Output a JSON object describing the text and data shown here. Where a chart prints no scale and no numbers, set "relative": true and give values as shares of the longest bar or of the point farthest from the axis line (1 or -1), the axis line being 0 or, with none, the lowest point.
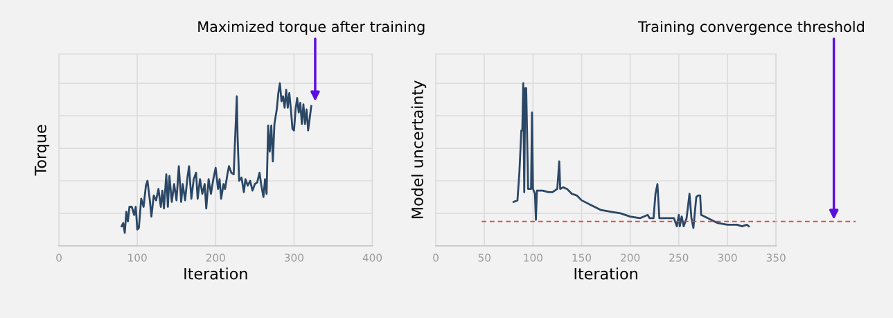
{
  "chart_data": [
    {
      "type": "line",
      "xlabel": "Iteration",
      "ylabel": "Torque",
      "relative": true,
      "grid": true,
      "xlim": [
        0,
        400
      ],
      "xticks": [
        0,
        100,
        200,
        300,
        400
      ],
      "annotations": [
        "Maximized torque after training"
      ],
      "series": [
        {
          "color": "#2b4766",
          "x": [
            80,
            82,
            84,
            86,
            88,
            90,
            93,
            96,
            98,
            100,
            102,
            105,
            108,
            111,
            113,
            116,
            118,
            121,
            124,
            127,
            130,
            132,
            134,
            137,
            139,
            141,
            144,
            147,
            150,
            153,
            156,
            158,
            161,
            164,
            166,
            169,
            172,
            175,
            177,
            180,
            183,
            186,
            188,
            191,
            194,
            197,
            200,
            203,
            205,
            207,
            210,
            212,
            215,
            217,
            220,
            223,
            225,
            227,
            228,
            230,
            233,
            236,
            238,
            241,
            244,
            247,
            250,
            253,
            256,
            258,
            261,
            263,
            265,
            267,
            269,
            271,
            273,
            275,
            278,
            280,
            282,
            284,
            286,
            288,
            290,
            292,
            294,
            296,
            298,
            300,
            302,
            304,
            306,
            308,
            310,
            312,
            314,
            316,
            318,
            322
          ],
          "values": [
            0.12,
            0.14,
            0.08,
            0.21,
            0.15,
            0.24,
            0.24,
            0.19,
            0.24,
            0.1,
            0.11,
            0.29,
            0.24,
            0.37,
            0.4,
            0.28,
            0.18,
            0.31,
            0.28,
            0.35,
            0.24,
            0.34,
            0.23,
            0.44,
            0.24,
            0.43,
            0.27,
            0.38,
            0.28,
            0.49,
            0.27,
            0.38,
            0.28,
            0.42,
            0.49,
            0.29,
            0.41,
            0.45,
            0.29,
            0.41,
            0.32,
            0.38,
            0.23,
            0.41,
            0.32,
            0.41,
            0.48,
            0.35,
            0.41,
            0.29,
            0.38,
            0.35,
            0.44,
            0.49,
            0.45,
            0.44,
            0.68,
            0.92,
            0.67,
            0.4,
            0.42,
            0.33,
            0.41,
            0.37,
            0.4,
            0.34,
            0.38,
            0.39,
            0.45,
            0.38,
            0.3,
            0.41,
            0.32,
            0.74,
            0.58,
            0.74,
            0.52,
            0.75,
            0.84,
            0.94,
            1,
            0.89,
            0.92,
            0.85,
            0.96,
            0.85,
            0.94,
            0.84,
            0.72,
            0.71,
            0.84,
            0.91,
            0.82,
            0.88,
            0.75,
            0.87,
            0.75,
            0.84,
            0.71,
            0.86
          ]
        }
      ]
    },
    {
      "type": "line",
      "xlabel": "Iteration",
      "ylabel": "Model uncertainty",
      "relative": true,
      "grid": true,
      "xlim": [
        0,
        350
      ],
      "xticks": [
        0,
        50,
        100,
        150,
        200,
        250,
        300,
        350
      ],
      "ref_lines": [
        {
          "axis": "y",
          "value": 0.15,
          "label": "Training convergence threshold",
          "color": "#e8403a",
          "line_style": "dashed"
        }
      ],
      "series": [
        {
          "color": "#2b4766",
          "x": [
            80,
            84,
            86,
            88,
            89,
            90,
            91,
            92,
            93,
            95,
            98,
            99,
            100,
            102,
            103,
            104,
            110,
            116,
            120,
            125,
            127,
            128,
            131,
            135,
            140,
            145,
            150,
            160,
            170,
            180,
            190,
            200,
            210,
            218,
            220,
            224,
            226,
            228,
            230,
            235,
            240,
            245,
            248,
            250,
            251,
            253,
            255,
            258,
            261,
            263,
            265,
            268,
            270,
            272,
            273,
            280,
            290,
            300,
            310,
            315,
            320,
            322
          ],
          "values": [
            0.27,
            0.28,
            0.45,
            0.71,
            0.71,
            1,
            0.33,
            0.97,
            0.97,
            0.35,
            0.35,
            0.82,
            0.35,
            0.32,
            0.16,
            0.34,
            0.34,
            0.33,
            0.33,
            0.35,
            0.52,
            0.35,
            0.36,
            0.35,
            0.32,
            0.31,
            0.28,
            0.25,
            0.22,
            0.21,
            0.2,
            0.18,
            0.17,
            0.19,
            0.17,
            0.17,
            0.32,
            0.38,
            0.17,
            0.17,
            0.17,
            0.17,
            0.12,
            0.19,
            0.12,
            0.18,
            0.12,
            0.17,
            0.32,
            0.17,
            0.11,
            0.3,
            0.31,
            0.31,
            0.19,
            0.17,
            0.14,
            0.13,
            0.13,
            0.12,
            0.13,
            0.12
          ]
        }
      ]
    }
  ]
}
